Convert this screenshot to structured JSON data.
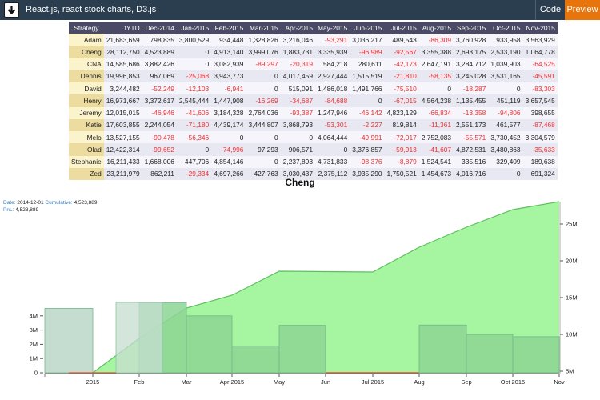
{
  "header": {
    "title": "React.js, react stock charts, D3.js",
    "code_label": "Code",
    "preview_label": "Preview",
    "colors": {
      "bar": "#2b3e50",
      "preview": "#e8740c"
    }
  },
  "table": {
    "columns": [
      "Strategy",
      "fYTD",
      "Dec-2014",
      "Jan-2015",
      "Feb-2015",
      "Mar-2015",
      "Apr-2015",
      "May-2015",
      "Jun-2015",
      "Jul-2015",
      "Aug-2015",
      "Sep-2015",
      "Oct-2015",
      "Nov-2015"
    ],
    "rows": [
      [
        "Adam",
        "21,683,659",
        "798,835",
        "3,800,529",
        "934,448",
        "1,328,826",
        "3,216,046",
        "-93,291",
        "3,036,217",
        "489,543",
        "-86,309",
        "3,760,928",
        "933,958",
        "3,563,929"
      ],
      [
        "Cheng",
        "28,112,750",
        "4,523,889",
        "0",
        "4,913,140",
        "3,999,076",
        "1,883,731",
        "3,335,939",
        "-96,989",
        "-92,567",
        "3,355,388",
        "2,693,175",
        "2,533,190",
        "1,064,778"
      ],
      [
        "CNA",
        "14,585,686",
        "3,882,426",
        "0",
        "3,082,939",
        "-89,297",
        "-20,319",
        "584,218",
        "280,611",
        "-42,173",
        "2,647,191",
        "3,284,712",
        "1,039,903",
        "-64,525"
      ],
      [
        "Dennis",
        "19,996,853",
        "967,069",
        "-25,068",
        "3,943,773",
        "0",
        "4,017,459",
        "2,927,444",
        "1,515,519",
        "-21,810",
        "-58,135",
        "3,245,028",
        "3,531,165",
        "-45,591"
      ],
      [
        "David",
        "3,244,482",
        "-52,249",
        "-12,103",
        "-6,941",
        "0",
        "515,091",
        "1,486,018",
        "1,491,766",
        "-75,510",
        "0",
        "-18,287",
        "0",
        "-83,303"
      ],
      [
        "Henry",
        "16,971,667",
        "3,372,617",
        "2,545,444",
        "1,447,908",
        "-16,269",
        "-34,687",
        "-84,688",
        "0",
        "-67,015",
        "4,564,238",
        "1,135,455",
        "451,119",
        "3,657,545"
      ],
      [
        "Jeremy",
        "12,015,015",
        "-46,946",
        "-41,606",
        "3,184,328",
        "2,764,036",
        "-93,387",
        "1,247,946",
        "-46,142",
        "4,823,129",
        "-66,834",
        "-13,358",
        "-94,806",
        "398,655"
      ],
      [
        "Katie",
        "17,603,855",
        "2,244,054",
        "-71,180",
        "4,439,174",
        "3,444,807",
        "3,868,793",
        "-53,301",
        "-2,227",
        "819,814",
        "-11,361",
        "2,551,173",
        "461,577",
        "-87,468"
      ],
      [
        "Melo",
        "13,527,155",
        "-90,478",
        "-56,346",
        "0",
        "0",
        "0",
        "4,064,444",
        "-49,991",
        "-72,017",
        "2,752,083",
        "-55,571",
        "3,730,452",
        "3,304,579"
      ],
      [
        "Olad",
        "12,422,314",
        "-99,652",
        "0",
        "-74,996",
        "97,293",
        "906,571",
        "0",
        "3,376,857",
        "-59,913",
        "-41,607",
        "4,872,531",
        "3,480,863",
        "-35,633"
      ],
      [
        "Stephanie",
        "16,211,433",
        "1,668,006",
        "447,706",
        "4,854,146",
        "0",
        "2,237,893",
        "4,731,833",
        "-98,376",
        "-8,879",
        "1,524,541",
        "335,516",
        "329,409",
        "189,638"
      ],
      [
        "Zed",
        "23,211,979",
        "862,211",
        "-29,334",
        "4,697,266",
        "427,763",
        "3,030,437",
        "2,375,112",
        "3,935,290",
        "1,750,521",
        "1,454,673",
        "4,016,716",
        "0",
        "691,324"
      ]
    ]
  },
  "chart": {
    "title": "Cheng",
    "tooltip": {
      "date_label": "Date:",
      "date_value": "2014-12-01",
      "cumulative_label": "Cumulative:",
      "cumulative_value": "4,523,889",
      "pnl_label": "PnL:",
      "pnl_value": "4,523,889"
    },
    "left_axis_ticks": [
      "0",
      "1M",
      "2M",
      "3M",
      "4M"
    ],
    "right_axis_ticks": [
      "5M",
      "10M",
      "15M",
      "20M",
      "25M"
    ],
    "x_ticks": [
      "2015",
      "Feb",
      "Mar",
      "Apr 2015",
      "May",
      "Jun",
      "Jul 2015",
      "Aug",
      "Sep",
      "Oct 2015",
      "Nov"
    ],
    "colors": {
      "area": "#a6f5a1",
      "area_line": "#5fbf5f",
      "bar": "#8cd594",
      "bar_highlight": "#c5ddd0",
      "negative": "#e8502a"
    }
  },
  "chart_data": {
    "type": "bar",
    "title": "Cheng",
    "xlabel": "",
    "ylabel": "",
    "categories": [
      "Dec-2014",
      "Jan-2015",
      "Feb-2015",
      "Mar-2015",
      "Apr-2015",
      "May-2015",
      "Jun-2015",
      "Jul-2015",
      "Aug-2015",
      "Sep-2015",
      "Oct-2015",
      "Nov-2015"
    ],
    "series": [
      {
        "name": "PnL (bars, left axis)",
        "values": [
          4523889,
          0,
          4913140,
          3999076,
          1883731,
          3335939,
          -96989,
          -92567,
          3355388,
          2693175,
          2533190,
          1064778
        ]
      },
      {
        "name": "Cumulative (area, right axis)",
        "values": [
          4523889,
          4523889,
          9437029,
          13436105,
          15319836,
          18655775,
          18558786,
          18466219,
          21821607,
          24514782,
          27047972,
          28112750
        ]
      }
    ],
    "ylim_left": [
      0,
      5000000
    ],
    "ylim_right": [
      5000000,
      28000000
    ],
    "left_ticks": [
      "0",
      "1M",
      "2M",
      "3M",
      "4M"
    ],
    "right_ticks": [
      "5M",
      "10M",
      "15M",
      "20M",
      "25M"
    ]
  }
}
